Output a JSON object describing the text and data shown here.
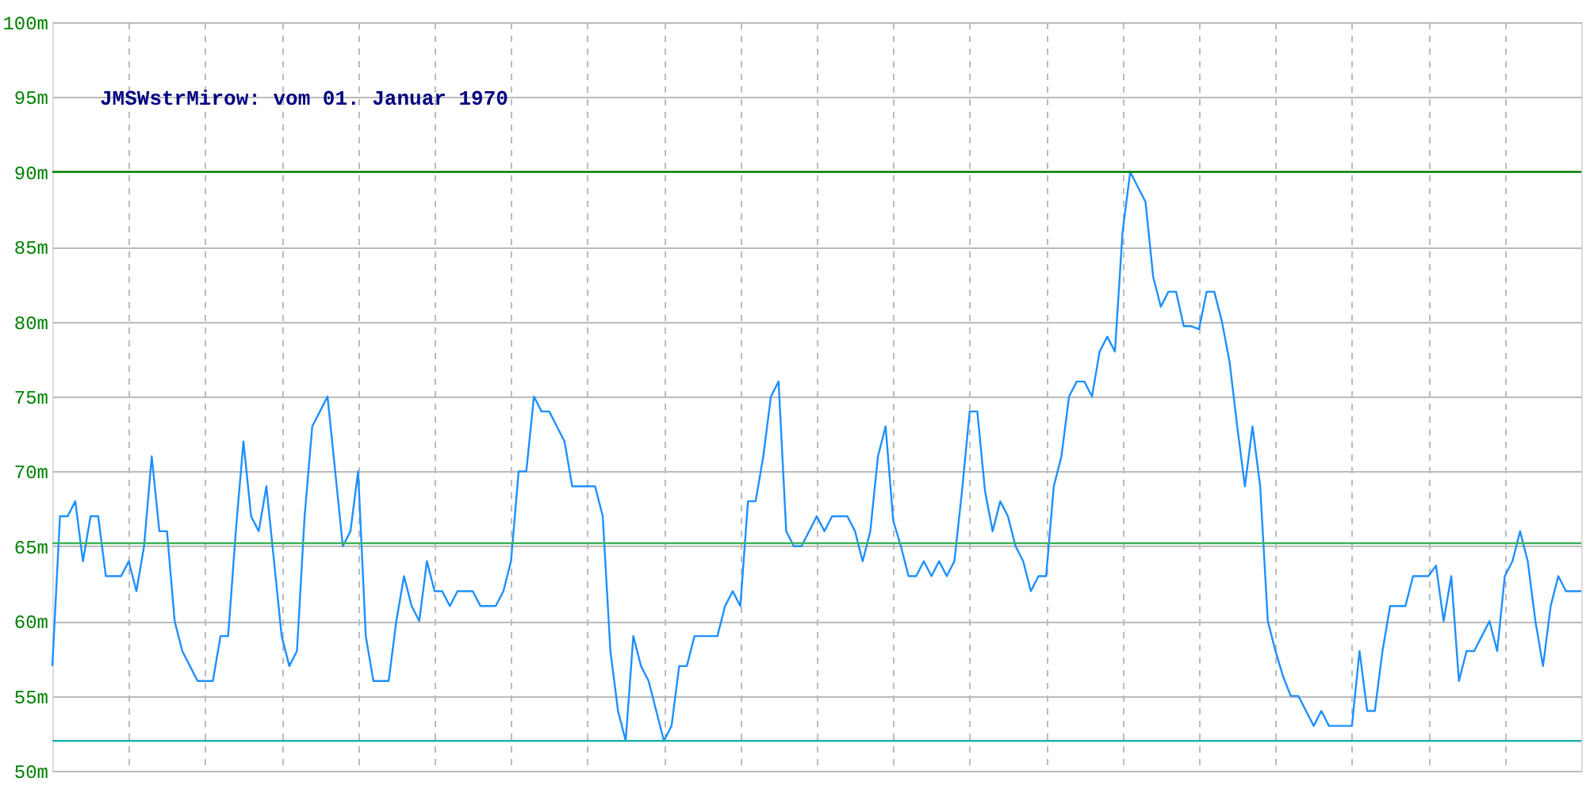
{
  "chart_data": {
    "type": "line",
    "title": "JMSWstrMirow: vom 01. Januar 1970",
    "categories": [
      null,
      null,
      null,
      null,
      null,
      null,
      null,
      null,
      null,
      null,
      null,
      null,
      null,
      null,
      null,
      null,
      null,
      null,
      null,
      null,
      null,
      null,
      null,
      null,
      null,
      null,
      null,
      null,
      null,
      null,
      null,
      null,
      null,
      null,
      null,
      null,
      null,
      null,
      null,
      null,
      null,
      null,
      null,
      null,
      null,
      null,
      null,
      null,
      null,
      null,
      null,
      null,
      null,
      null,
      null,
      null,
      null,
      null,
      null,
      null,
      null,
      null,
      null,
      null,
      null,
      null,
      null,
      null,
      null,
      null,
      null,
      null,
      null,
      null,
      null,
      null,
      null,
      null,
      null,
      null,
      null,
      null,
      null,
      null,
      null,
      null,
      null,
      null,
      null,
      null,
      null,
      null,
      null,
      null,
      null,
      null,
      null,
      null,
      null,
      null,
      null,
      null,
      null,
      null,
      null,
      null,
      null,
      null,
      null,
      null,
      null,
      null,
      null,
      null,
      null,
      null,
      null,
      null,
      null,
      null,
      null,
      null,
      null,
      null,
      null,
      null,
      null,
      null,
      null,
      null,
      null,
      null,
      null,
      null,
      null,
      null,
      null,
      null,
      null,
      null,
      null,
      null,
      null,
      null,
      null,
      null,
      null,
      null,
      null,
      null,
      null,
      null,
      null,
      null,
      null,
      null,
      null,
      null,
      null,
      null,
      null,
      null,
      null,
      null,
      null,
      null,
      null,
      null,
      null,
      null,
      null,
      null,
      null,
      null,
      null,
      null,
      null,
      null,
      null,
      null,
      null,
      null,
      null,
      null,
      null,
      null,
      null,
      null,
      null,
      null,
      null,
      null,
      null,
      null,
      null,
      null,
      null,
      null,
      null,
      null,
      null
    ],
    "series": [
      {
        "color": "#1e90ff",
        "values": [
          57,
          67,
          67,
          68,
          64,
          67,
          67,
          63,
          63,
          63,
          64,
          62,
          65,
          71,
          66,
          66,
          60,
          58,
          57,
          56,
          56,
          56,
          59,
          59,
          66,
          72,
          67,
          66,
          69,
          64,
          59,
          57,
          58,
          67,
          73,
          74,
          75,
          70,
          65,
          66,
          70,
          59,
          56,
          56,
          56,
          60,
          63,
          61,
          60,
          64,
          62,
          62,
          61,
          62,
          62,
          62,
          61,
          61,
          61,
          62,
          64,
          70,
          70,
          75,
          74,
          74,
          73,
          72,
          69,
          69,
          69,
          69,
          67,
          58,
          54,
          52,
          59,
          57,
          56,
          54,
          52,
          53,
          57,
          57,
          59,
          59,
          59,
          59,
          61,
          62,
          61,
          68,
          68,
          71,
          75,
          76,
          66,
          65,
          65,
          66,
          67,
          66,
          67,
          67,
          67,
          66,
          64,
          66,
          71,
          73,
          66.7,
          65,
          63,
          63,
          64,
          63,
          64,
          63,
          64,
          68.7,
          74,
          74,
          68.7,
          66,
          68,
          67,
          65,
          64,
          62,
          63,
          63,
          69,
          71,
          75,
          76,
          76,
          75,
          78,
          79,
          78,
          86,
          90,
          89,
          88,
          83,
          81,
          82,
          82,
          79.7,
          79.7,
          79.5,
          82,
          82,
          80,
          77.3,
          73,
          69,
          73,
          69,
          60,
          58,
          56.3,
          55,
          55,
          54,
          53,
          54,
          53,
          53,
          53,
          53,
          58,
          54,
          54,
          58,
          61,
          61,
          61,
          63,
          63,
          63,
          63.7,
          60,
          63,
          56,
          58,
          58,
          59,
          60,
          58,
          63,
          64,
          66,
          64,
          60,
          57,
          61,
          63,
          62,
          62,
          62
        ]
      }
    ],
    "ylim": [
      50,
      100
    ],
    "yticks": [
      {
        "value": 50,
        "label": "50m"
      },
      {
        "value": 55,
        "label": "55m"
      },
      {
        "value": 60,
        "label": "60m"
      },
      {
        "value": 65,
        "label": "65m"
      },
      {
        "value": 70,
        "label": "70m"
      },
      {
        "value": 75,
        "label": "75m"
      },
      {
        "value": 80,
        "label": "80m"
      },
      {
        "value": 85,
        "label": "85m"
      },
      {
        "value": 90,
        "label": "90m"
      },
      {
        "value": 95,
        "label": "95m"
      },
      {
        "value": 100,
        "label": "100m"
      }
    ],
    "ref_lines": [
      {
        "axis": "y",
        "value": 90,
        "color": "#008000"
      },
      {
        "axis": "y",
        "value": 65.2,
        "color": "#3cb35a"
      },
      {
        "axis": "y",
        "value": 52,
        "color": "#20b2aa"
      }
    ],
    "grid": true,
    "tick_labels": "y"
  }
}
